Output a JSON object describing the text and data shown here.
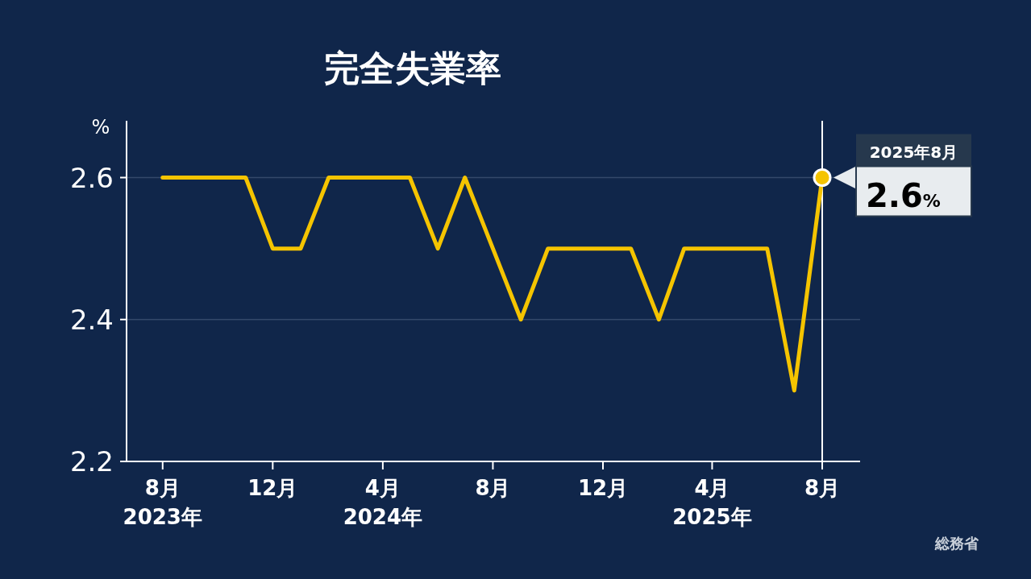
{
  "chart_data": {
    "type": "line",
    "title": "完全失業率",
    "ylabel": "%",
    "x": [
      "2023-08",
      "2023-09",
      "2023-10",
      "2023-11",
      "2023-12",
      "2024-01",
      "2024-02",
      "2024-03",
      "2024-04",
      "2024-05",
      "2024-06",
      "2024-07",
      "2024-08",
      "2024-09",
      "2024-10",
      "2024-11",
      "2024-12",
      "2025-01",
      "2025-02",
      "2025-03",
      "2025-04",
      "2025-05",
      "2025-06",
      "2025-07",
      "2025-08"
    ],
    "series": [
      {
        "color": "#f5c400",
        "values": [
          2.6,
          2.6,
          2.6,
          2.6,
          2.5,
          2.5,
          2.6,
          2.6,
          2.6,
          2.6,
          2.5,
          2.6,
          2.5,
          2.4,
          2.5,
          2.5,
          2.5,
          2.5,
          2.4,
          2.5,
          2.5,
          2.5,
          2.5,
          2.3,
          2.6
        ],
        "value_labels": [
          null,
          null,
          null,
          null,
          null,
          null,
          null,
          null,
          null,
          null,
          null,
          null,
          null,
          null,
          null,
          null,
          null,
          null,
          null,
          null,
          null,
          null,
          null,
          null,
          "2.6%"
        ]
      }
    ],
    "xlim": [
      "2023-06-22",
      "2025-09-12"
    ],
    "xticks": [
      {
        "value": "2023-08",
        "label": "8月\n2023年"
      },
      {
        "value": "2023-12",
        "label": "12月"
      },
      {
        "value": "2024-04",
        "label": "4月\n2024年"
      },
      {
        "value": "2024-08",
        "label": "8月"
      },
      {
        "value": "2024-12",
        "label": "12月"
      },
      {
        "value": "2025-04",
        "label": "4月\n2025年"
      },
      {
        "value": "2025-08",
        "label": "8月"
      }
    ],
    "ylim": [
      2.2,
      2.68
    ],
    "yticks": [
      2.2,
      2.4,
      2.6
    ],
    "grid": "y",
    "marker": "none",
    "line_style": "solid",
    "ref_lines": [
      {
        "axis": "x",
        "value": "2025-08",
        "label": null,
        "color": "#ffffff"
      }
    ],
    "annotations": [
      "2025年8月",
      "総務省"
    ]
  }
}
